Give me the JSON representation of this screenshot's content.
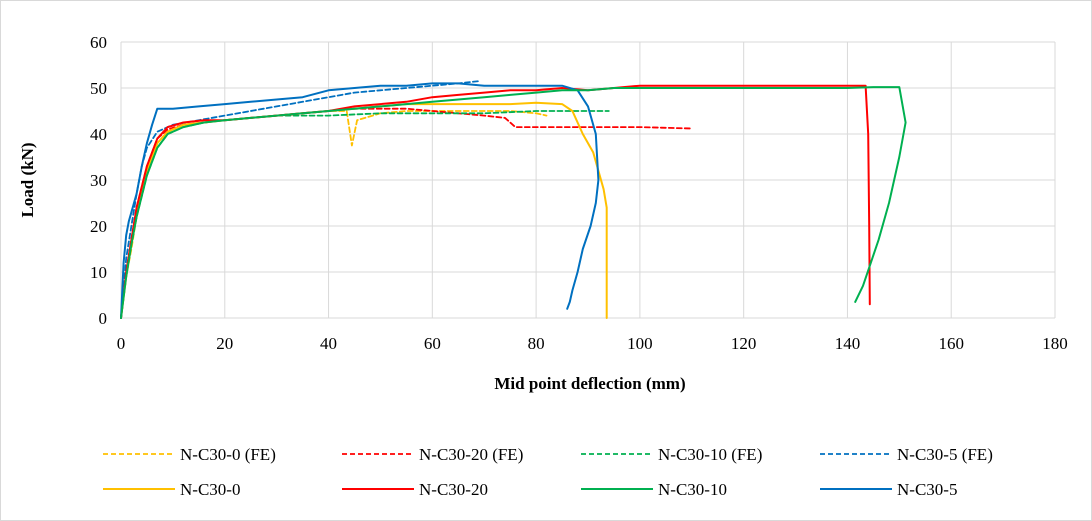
{
  "chart_data": {
    "type": "line",
    "title": "",
    "xlabel": "Mid point deflection (mm)",
    "ylabel": "Load (kN)",
    "xlim": [
      0,
      180
    ],
    "ylim": [
      0,
      60
    ],
    "x_ticks": [
      0,
      20,
      40,
      60,
      80,
      100,
      120,
      140,
      160,
      180
    ],
    "y_ticks": [
      0,
      10,
      20,
      30,
      40,
      50,
      60
    ],
    "grid": "horizontal-and-vertical",
    "legend_position": "bottom",
    "series": [
      {
        "name": "N-C30-0 (FE)",
        "color": "#ffc000",
        "dashed": true,
        "x": [
          0,
          1,
          2,
          3,
          5,
          7,
          9,
          12,
          16,
          20,
          25,
          30,
          35,
          40,
          43.5,
          44.5,
          45.5,
          50,
          55,
          60,
          65,
          70,
          75,
          80,
          82
        ],
        "y": [
          0,
          9,
          15,
          22,
          31,
          38,
          40.5,
          42,
          42.5,
          43,
          43.5,
          44,
          44.5,
          45,
          45,
          37.5,
          43,
          44.5,
          45,
          45,
          45,
          45,
          45,
          44.5,
          44
        ]
      },
      {
        "name": "N-C30-20 (FE)",
        "color": "#ff0000",
        "dashed": true,
        "x": [
          0,
          1,
          2,
          3,
          5,
          7,
          9,
          12,
          16,
          20,
          25,
          30,
          35,
          40,
          45,
          50,
          55,
          60,
          65,
          70,
          74,
          76,
          80,
          90,
          100,
          110
        ],
        "y": [
          0,
          10,
          17,
          24,
          33,
          39,
          41,
          42,
          42.5,
          43,
          43.5,
          44,
          44.5,
          45,
          45.5,
          45.5,
          45.5,
          45,
          44.5,
          44,
          43.5,
          41.5,
          41.5,
          41.5,
          41.5,
          41.2
        ]
      },
      {
        "name": "N-C30-10 (FE)",
        "color": "#00b050",
        "dashed": true,
        "x": [
          0,
          1,
          2,
          3,
          5,
          7,
          9,
          12,
          16,
          20,
          25,
          30,
          35,
          40,
          50,
          60,
          70,
          80,
          90,
          94
        ],
        "y": [
          0,
          9,
          16,
          22,
          31,
          37,
          40,
          41.5,
          42.5,
          43,
          43.5,
          44,
          44,
          44,
          44.5,
          44.5,
          44.5,
          45,
          45,
          45
        ]
      },
      {
        "name": "N-C30-5 (FE)",
        "color": "#0070c0",
        "dashed": true,
        "x": [
          0,
          1,
          2,
          3,
          4,
          5,
          7,
          10,
          15,
          20,
          25,
          30,
          35,
          40,
          45,
          50,
          55,
          60,
          65,
          69
        ],
        "y": [
          0,
          13,
          20,
          27,
          33,
          37,
          40.5,
          42,
          43,
          44,
          45,
          46,
          47,
          48,
          49,
          49.5,
          50,
          50.5,
          51,
          51.5
        ]
      },
      {
        "name": "N-C30-0",
        "color": "#ffc000",
        "dashed": false,
        "x": [
          0,
          1,
          2,
          3,
          5,
          7,
          9,
          12,
          16,
          20,
          25,
          30,
          35,
          40,
          45,
          50,
          55,
          60,
          65,
          70,
          75,
          80,
          85,
          87,
          89,
          91,
          93,
          93.6,
          93.6
        ],
        "y": [
          0,
          9,
          16,
          23,
          32,
          38,
          40.5,
          42,
          42.5,
          43,
          43.5,
          44,
          44.5,
          45,
          45.5,
          46,
          46.5,
          46.5,
          46.5,
          46.5,
          46.5,
          46.8,
          46.5,
          45,
          40,
          36,
          28,
          24,
          0
        ]
      },
      {
        "name": "N-C30-20",
        "color": "#ff0000",
        "dashed": false,
        "x": [
          0,
          1,
          2,
          3,
          5,
          7,
          9,
          12,
          16,
          20,
          25,
          30,
          35,
          40,
          45,
          50,
          55,
          60,
          65,
          70,
          75,
          80,
          85,
          90,
          95,
          100,
          110,
          120,
          130,
          140,
          143.5,
          144,
          144.2,
          144.3
        ],
        "y": [
          0,
          10,
          17,
          24,
          33,
          39,
          41.5,
          42.5,
          43,
          43,
          43.5,
          44,
          44.5,
          45,
          46,
          46.5,
          47,
          48,
          48.5,
          49,
          49.5,
          49.5,
          50,
          49.5,
          50,
          50.5,
          50.5,
          50.5,
          50.5,
          50.5,
          50.5,
          40,
          20,
          3
        ]
      },
      {
        "name": "N-C30-10",
        "color": "#00b050",
        "dashed": false,
        "x": [
          0,
          1,
          2,
          3,
          5,
          7,
          9,
          12,
          16,
          20,
          25,
          30,
          35,
          40,
          45,
          50,
          55,
          60,
          65,
          70,
          75,
          80,
          85,
          90,
          95,
          100,
          110,
          120,
          130,
          140,
          145,
          150,
          151.2,
          150,
          148,
          146,
          144.5,
          143,
          141.5
        ],
        "y": [
          0,
          9,
          16,
          22,
          31,
          37,
          40,
          41.5,
          42.5,
          43,
          43.5,
          44,
          44.5,
          45,
          45.5,
          46,
          46.5,
          47,
          47.5,
          48,
          48.5,
          49,
          49.5,
          49.5,
          50,
          50,
          50,
          50,
          50,
          50,
          50.2,
          50.2,
          42.5,
          35,
          25,
          17,
          12,
          7,
          3.5
        ]
      },
      {
        "name": "N-C30-5",
        "color": "#0070c0",
        "dashed": false,
        "x": [
          0,
          0.5,
          1,
          1.5,
          2,
          3,
          4,
          5,
          6,
          7,
          10,
          15,
          20,
          25,
          30,
          35,
          40,
          45,
          50,
          55,
          60,
          65,
          70,
          75,
          80,
          85,
          88,
          90,
          91.5,
          92,
          91.5,
          90.5,
          89,
          88,
          87,
          86.5,
          86
        ],
        "y": [
          0,
          12,
          18,
          21,
          23,
          27,
          33,
          38,
          42,
          45.5,
          45.5,
          46,
          46.5,
          47,
          47.5,
          48,
          49.5,
          50,
          50.5,
          50.5,
          51,
          51,
          50.5,
          50.5,
          50.5,
          50.5,
          49.5,
          46,
          40,
          30,
          25,
          20,
          15,
          10,
          6,
          3.5,
          2
        ]
      }
    ]
  }
}
